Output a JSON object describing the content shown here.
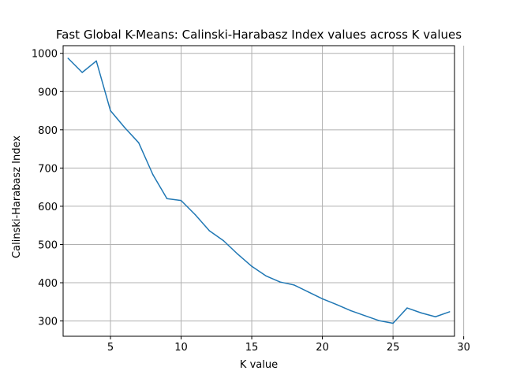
{
  "chart_data": {
    "type": "line",
    "title": "Fast Global K-Means: Calinski-Harabasz Index values across K values",
    "xlabel": "K value",
    "ylabel": "Calinski-Harabasz Index",
    "xlim": [
      1.65,
      29.35
    ],
    "ylim": [
      260,
      1020
    ],
    "xticks": [
      5,
      10,
      15,
      20,
      25,
      30
    ],
    "yticks": [
      300,
      400,
      500,
      600,
      700,
      800,
      900,
      1000
    ],
    "grid": true,
    "line_color": "#1f77b4",
    "series": [
      {
        "name": "",
        "x": [
          2,
          3,
          4,
          5,
          6,
          7,
          8,
          9,
          10,
          11,
          12,
          13,
          14,
          15,
          16,
          17,
          18,
          19,
          20,
          21,
          22,
          23,
          24,
          25,
          26,
          27,
          28,
          29
        ],
        "values": [
          987,
          950,
          980,
          850,
          806,
          766,
          683,
          620,
          615,
          578,
          536,
          510,
          475,
          443,
          418,
          402,
          394,
          376,
          358,
          343,
          327,
          314,
          301,
          294,
          334,
          321,
          311,
          324
        ]
      }
    ]
  }
}
